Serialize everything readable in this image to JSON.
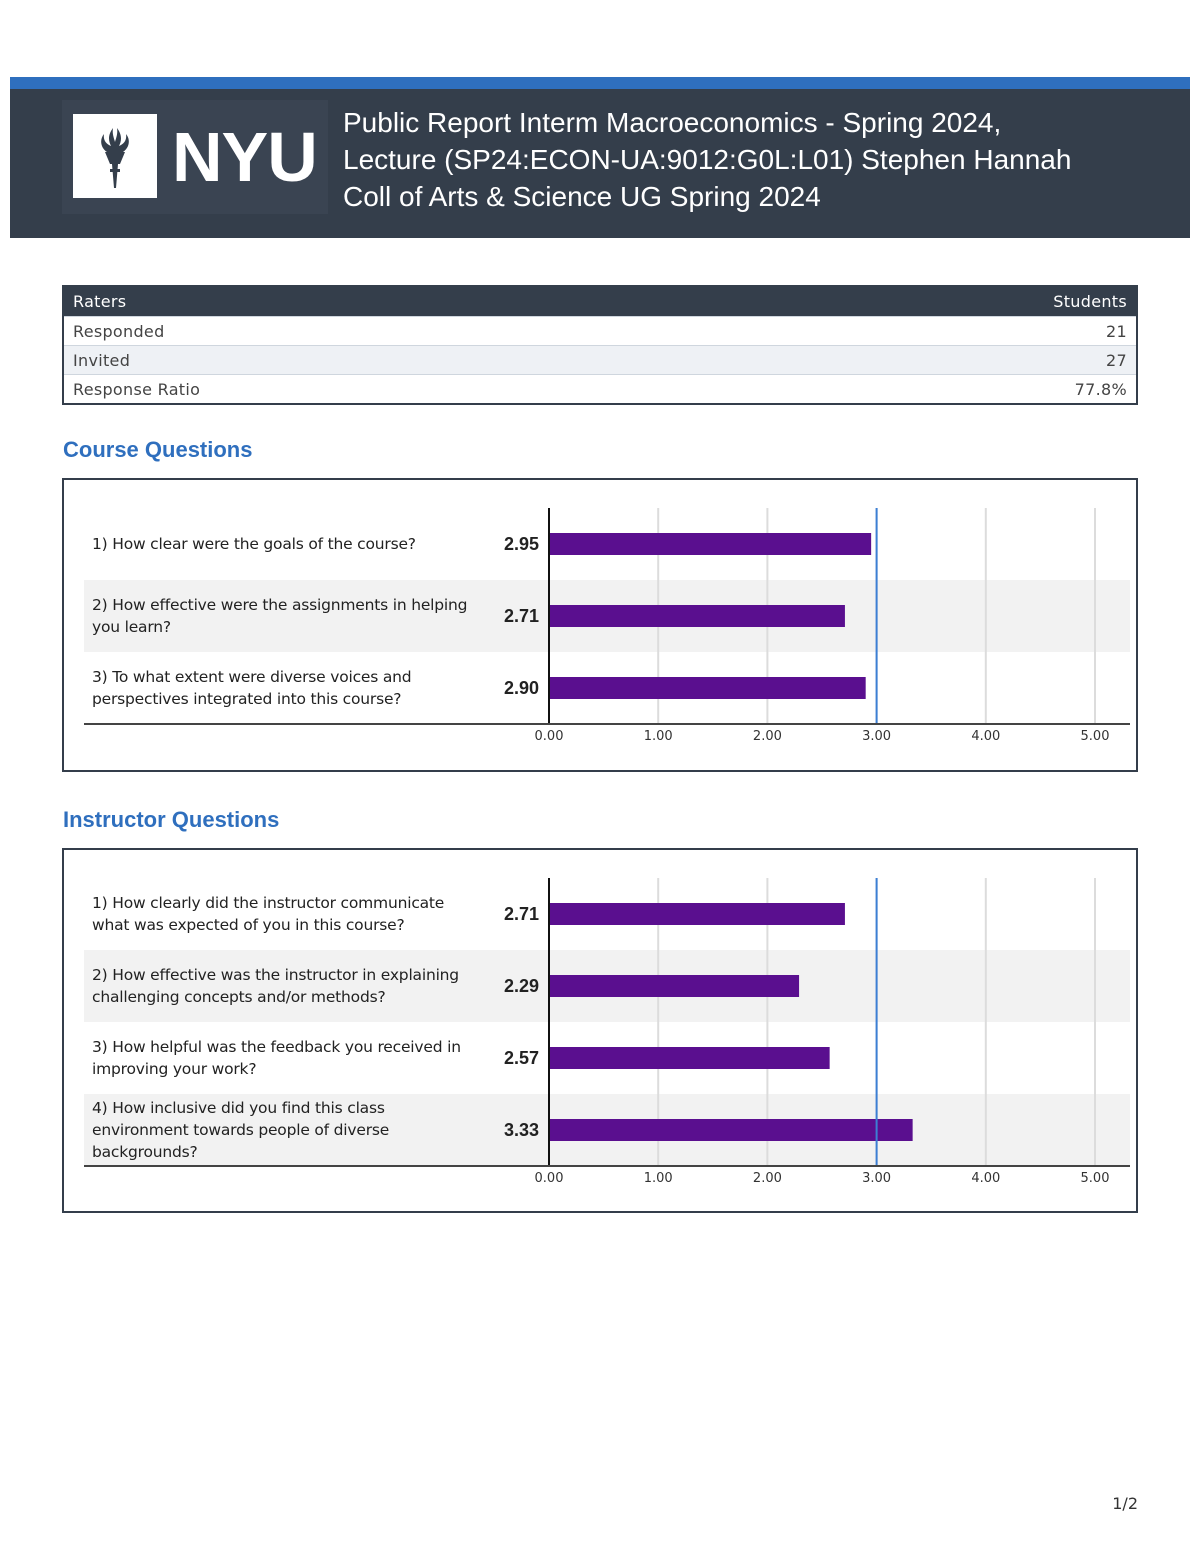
{
  "header": {
    "logo_text": "NYU",
    "title_lines": [
      "Public Report Interm Macroeconomics - Spring 2024,",
      "Lecture (SP24:ECON-UA:9012:G0L:L01) Stephen Hannah",
      "Coll of Arts & Science UG Spring 2024"
    ]
  },
  "raters_table": {
    "header": [
      "Raters",
      "Students"
    ],
    "rows": [
      {
        "label": "Responded",
        "value": "21"
      },
      {
        "label": "Invited",
        "value": "27"
      },
      {
        "label": "Response Ratio",
        "value": "77.8%"
      }
    ]
  },
  "sections": {
    "course_title": "Course Questions",
    "instructor_title": "Instructor Questions"
  },
  "colors": {
    "bar": "#5a0f8f",
    "reference_line": "#3c7fd4",
    "band": "#f2f2f2",
    "grid": "#dcdcdc"
  },
  "chart_data": [
    {
      "type": "bar",
      "orientation": "horizontal",
      "title": "Course Questions",
      "categories": [
        [
          "1) How clear were the goals of the course?"
        ],
        [
          "2) How effective were the assignments in helping",
          "you learn?"
        ],
        [
          "3) To what extent were diverse voices and",
          "perspectives integrated into this course?"
        ]
      ],
      "values": [
        2.95,
        2.71,
        2.9
      ],
      "value_labels": [
        "2.95",
        "2.71",
        "2.90"
      ],
      "xlim": [
        0,
        5
      ],
      "ticks": [
        "0.00",
        "1.00",
        "2.00",
        "3.00",
        "4.00",
        "5.00"
      ],
      "reference_value": 3.0
    },
    {
      "type": "bar",
      "orientation": "horizontal",
      "title": "Instructor Questions",
      "categories": [
        [
          "1) How clearly did the instructor communicate",
          "what was expected of you in this course?"
        ],
        [
          "2) How effective was the instructor in explaining",
          "challenging concepts and/or methods?"
        ],
        [
          "3) How helpful was the feedback you received in",
          "improving your work?"
        ],
        [
          "4) How inclusive did you find this class",
          "environment towards people of diverse",
          "backgrounds?"
        ]
      ],
      "values": [
        2.71,
        2.29,
        2.57,
        3.33
      ],
      "value_labels": [
        "2.71",
        "2.29",
        "2.57",
        "3.33"
      ],
      "xlim": [
        0,
        5
      ],
      "ticks": [
        "0.00",
        "1.00",
        "2.00",
        "3.00",
        "4.00",
        "5.00"
      ],
      "reference_value": 3.0
    }
  ],
  "footer": {
    "page_number": "1/2"
  }
}
